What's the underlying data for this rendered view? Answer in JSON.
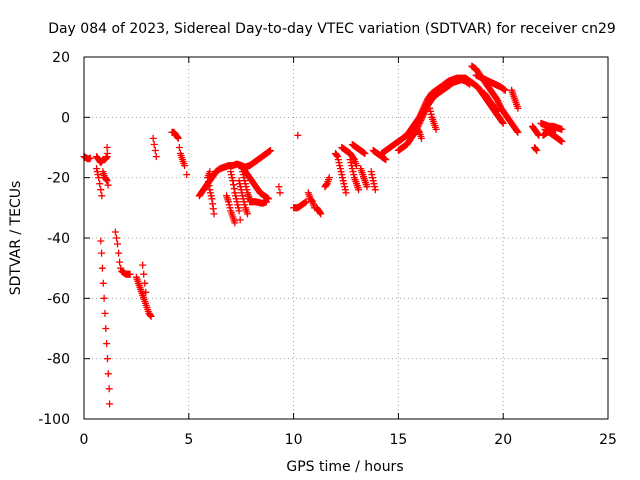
{
  "chart_data": {
    "type": "scatter",
    "title": "Day 084 of 2023, Sidereal Day-to-day VTEC variation (SDTVAR) for receiver cn29",
    "xlabel": "GPS time / hours",
    "ylabel": "SDTVAR / TECUs",
    "xlim": [
      0,
      25
    ],
    "ylim": [
      -100,
      20
    ],
    "xticks": [
      "0",
      "5",
      "10",
      "15",
      "20",
      "25"
    ],
    "yticks": [
      "20",
      "0",
      "-20",
      "-40",
      "-60",
      "-80",
      "-100"
    ],
    "grid": true,
    "marker": "+",
    "color": "#ff0000",
    "series": [
      {
        "name": "cn29",
        "segments": [
          [
            [
              0.0,
              -13
            ],
            [
              0.1,
              -13.4
            ],
            [
              0.2,
              -13.8
            ],
            [
              0.3,
              -13.5
            ]
          ],
          [
            [
              0.6,
              -13
            ],
            [
              0.7,
              -14
            ],
            [
              0.8,
              -15
            ],
            [
              0.9,
              -14
            ],
            [
              1.0,
              -14
            ],
            [
              1.1,
              -13
            ]
          ],
          [
            [
              0.6,
              -17
            ],
            [
              0.7,
              -20
            ],
            [
              0.75,
              -22
            ],
            [
              0.8,
              -24
            ],
            [
              0.85,
              -26
            ]
          ],
          [
            [
              0.9,
              -18
            ],
            [
              1.0,
              -20
            ],
            [
              1.1,
              -21
            ],
            [
              1.15,
              -22.5
            ]
          ],
          [
            [
              1.1,
              -10
            ],
            [
              1.12,
              -12
            ]
          ],
          [
            [
              0.8,
              -41
            ],
            [
              0.84,
              -45
            ],
            [
              0.88,
              -50
            ],
            [
              0.92,
              -55
            ],
            [
              0.96,
              -60
            ],
            [
              1.0,
              -65
            ],
            [
              1.04,
              -70
            ],
            [
              1.08,
              -75
            ],
            [
              1.12,
              -80
            ],
            [
              1.16,
              -85
            ],
            [
              1.2,
              -90
            ],
            [
              1.22,
              -95
            ]
          ],
          [
            [
              1.5,
              -38
            ],
            [
              1.55,
              -40
            ],
            [
              1.6,
              -42
            ],
            [
              1.65,
              -45
            ],
            [
              1.7,
              -48
            ],
            [
              1.75,
              -50
            ],
            [
              1.8,
              -51
            ],
            [
              1.9,
              -51.5
            ],
            [
              2.0,
              -52
            ],
            [
              2.1,
              -52
            ],
            [
              2.2,
              -52
            ]
          ],
          [
            [
              2.5,
              -53
            ],
            [
              2.6,
              -55
            ],
            [
              2.7,
              -57
            ],
            [
              2.8,
              -59
            ],
            [
              2.9,
              -61
            ],
            [
              3.0,
              -63
            ],
            [
              3.1,
              -65
            ],
            [
              3.2,
              -66
            ]
          ],
          [
            [
              2.8,
              -49
            ],
            [
              2.85,
              -52
            ],
            [
              2.9,
              -55
            ],
            [
              2.95,
              -58
            ]
          ],
          [
            [
              3.3,
              -7
            ],
            [
              3.35,
              -9
            ],
            [
              3.4,
              -11
            ],
            [
              3.45,
              -13
            ]
          ],
          [
            [
              4.2,
              -5
            ],
            [
              4.3,
              -5
            ],
            [
              4.4,
              -6
            ],
            [
              4.5,
              -7
            ],
            [
              4.55,
              -10
            ],
            [
              4.6,
              -12
            ],
            [
              4.7,
              -14
            ],
            [
              4.8,
              -16
            ]
          ],
          [
            [
              4.9,
              -19
            ]
          ],
          [
            [
              5.5,
              -26
            ],
            [
              5.7,
              -24
            ],
            [
              5.9,
              -22
            ],
            [
              6.1,
              -20
            ],
            [
              6.3,
              -18
            ],
            [
              6.5,
              -17
            ],
            [
              6.7,
              -16.5
            ],
            [
              6.9,
              -16
            ],
            [
              7.1,
              -16
            ],
            [
              7.3,
              -15.5
            ],
            [
              7.5,
              -16
            ],
            [
              7.7,
              -16.5
            ],
            [
              7.9,
              -16
            ],
            [
              8.1,
              -15
            ],
            [
              8.3,
              -14
            ],
            [
              8.5,
              -13
            ],
            [
              8.7,
              -12
            ],
            [
              8.9,
              -11
            ]
          ],
          [
            [
              6.2,
              -32
            ],
            [
              6.1,
              -27
            ],
            [
              6.0,
              -24
            ],
            [
              5.9,
              -20
            ],
            [
              6.0,
              -18
            ]
          ],
          [
            [
              7.0,
              -18
            ],
            [
              7.1,
              -21
            ],
            [
              7.2,
              -25
            ],
            [
              7.3,
              -28
            ],
            [
              7.4,
              -31
            ],
            [
              7.45,
              -34
            ]
          ],
          [
            [
              7.4,
              -21
            ],
            [
              7.5,
              -24
            ],
            [
              7.6,
              -27
            ],
            [
              7.7,
              -30
            ],
            [
              7.8,
              -32
            ]
          ],
          [
            [
              7.5,
              -16
            ],
            [
              7.6,
              -19
            ],
            [
              7.7,
              -22
            ],
            [
              7.8,
              -25
            ],
            [
              7.9,
              -27
            ],
            [
              8.0,
              -28
            ]
          ],
          [
            [
              7.6,
              -17
            ],
            [
              7.8,
              -19
            ],
            [
              8.0,
              -21
            ],
            [
              8.2,
              -23
            ],
            [
              8.4,
              -25
            ],
            [
              8.6,
              -26
            ],
            [
              8.8,
              -27
            ]
          ],
          [
            [
              6.8,
              -26
            ],
            [
              6.9,
              -28
            ],
            [
              7.0,
              -31
            ],
            [
              7.1,
              -33
            ],
            [
              7.2,
              -35
            ]
          ],
          [
            [
              7.9,
              -28
            ],
            [
              8.2,
              -28
            ],
            [
              8.5,
              -28.5
            ],
            [
              8.7,
              -28
            ]
          ],
          [
            [
              9.3,
              -23
            ],
            [
              9.35,
              -25
            ]
          ],
          [
            [
              10.2,
              -6
            ]
          ],
          [
            [
              10.0,
              -30
            ],
            [
              10.2,
              -30
            ],
            [
              10.4,
              -29
            ],
            [
              10.6,
              -28
            ]
          ],
          [
            [
              10.7,
              -25
            ],
            [
              10.8,
              -27
            ],
            [
              10.9,
              -28
            ],
            [
              11.0,
              -30
            ]
          ],
          [
            [
              11.1,
              -30
            ],
            [
              11.2,
              -31
            ],
            [
              11.3,
              -32
            ]
          ],
          [
            [
              11.5,
              -23
            ],
            [
              11.6,
              -22
            ],
            [
              11.7,
              -20
            ]
          ],
          [
            [
              12.0,
              -12
            ],
            [
              12.1,
              -13
            ],
            [
              12.2,
              -16
            ],
            [
              12.3,
              -19
            ],
            [
              12.4,
              -22
            ],
            [
              12.5,
              -25
            ]
          ],
          [
            [
              12.3,
              -10
            ],
            [
              12.5,
              -11
            ],
            [
              12.7,
              -12
            ],
            [
              12.9,
              -14
            ],
            [
              13.0,
              -16
            ]
          ],
          [
            [
              12.7,
              -14
            ],
            [
              12.8,
              -17
            ],
            [
              12.9,
              -20
            ],
            [
              13.0,
              -22
            ],
            [
              13.1,
              -24
            ]
          ],
          [
            [
              13.2,
              -17
            ],
            [
              13.3,
              -19
            ],
            [
              13.4,
              -21
            ],
            [
              13.5,
              -23
            ]
          ],
          [
            [
              12.8,
              -9
            ],
            [
              13.0,
              -10
            ],
            [
              13.2,
              -11
            ],
            [
              13.4,
              -12
            ]
          ],
          [
            [
              13.7,
              -18
            ],
            [
              13.8,
              -21
            ],
            [
              13.9,
              -24
            ]
          ],
          [
            [
              13.8,
              -11
            ],
            [
              14.0,
              -12
            ],
            [
              14.2,
              -13
            ],
            [
              14.4,
              -14
            ]
          ],
          [
            [
              14.2,
              -12
            ],
            [
              14.4,
              -11
            ],
            [
              14.6,
              -10
            ],
            [
              14.8,
              -9
            ],
            [
              15.0,
              -8
            ],
            [
              15.2,
              -7
            ],
            [
              15.4,
              -6
            ],
            [
              15.6,
              -4
            ],
            [
              15.8,
              -2
            ],
            [
              16.0,
              0
            ],
            [
              16.2,
              3
            ],
            [
              16.4,
              6
            ],
            [
              16.6,
              8
            ],
            [
              16.8,
              9
            ],
            [
              17.0,
              10
            ],
            [
              17.2,
              11
            ],
            [
              17.4,
              12
            ],
            [
              17.6,
              12.5
            ],
            [
              17.8,
              13
            ],
            [
              18.0,
              13
            ],
            [
              18.2,
              13
            ],
            [
              18.4,
              12
            ],
            [
              18.6,
              11
            ],
            [
              18.8,
              10
            ],
            [
              19.0,
              8
            ],
            [
              19.2,
              6
            ],
            [
              19.4,
              4
            ],
            [
              19.6,
              2
            ],
            [
              19.8,
              0
            ],
            [
              20.0,
              -2
            ]
          ],
          [
            [
              15.0,
              -11
            ],
            [
              15.2,
              -10
            ],
            [
              15.4,
              -9
            ],
            [
              15.6,
              -7
            ],
            [
              15.8,
              -5
            ],
            [
              16.0,
              -2
            ],
            [
              16.2,
              1
            ],
            [
              16.4,
              4
            ],
            [
              16.6,
              6
            ],
            [
              16.8,
              7.5
            ],
            [
              17.0,
              8.5
            ],
            [
              17.2,
              9.5
            ],
            [
              17.4,
              10.5
            ],
            [
              17.6,
              11.5
            ],
            [
              17.8,
              12
            ],
            [
              18.0,
              12.5
            ],
            [
              18.2,
              12
            ],
            [
              18.4,
              11
            ]
          ],
          [
            [
              15.8,
              -3
            ],
            [
              16.0,
              -5
            ],
            [
              16.1,
              -7
            ]
          ],
          [
            [
              16.5,
              3
            ],
            [
              16.6,
              0
            ],
            [
              16.7,
              -2
            ],
            [
              16.8,
              -4
            ]
          ],
          [
            [
              18.5,
              17
            ],
            [
              18.7,
              16
            ],
            [
              18.9,
              14
            ],
            [
              19.1,
              12
            ],
            [
              19.3,
              10
            ],
            [
              19.5,
              8
            ],
            [
              19.7,
              6
            ],
            [
              19.9,
              3
            ],
            [
              20.1,
              1
            ],
            [
              20.3,
              -1
            ],
            [
              20.5,
              -3
            ],
            [
              20.7,
              -5
            ]
          ],
          [
            [
              18.7,
              14
            ],
            [
              19.0,
              13
            ],
            [
              19.3,
              12
            ],
            [
              19.6,
              11
            ],
            [
              19.9,
              10
            ],
            [
              20.1,
              9
            ]
          ],
          [
            [
              19.1,
              8
            ],
            [
              19.3,
              6
            ],
            [
              19.5,
              4
            ],
            [
              19.7,
              2
            ]
          ],
          [
            [
              20.4,
              9
            ],
            [
              20.5,
              7
            ],
            [
              20.6,
              5
            ],
            [
              20.7,
              3
            ]
          ],
          [
            [
              21.5,
              -10
            ],
            [
              21.6,
              -11
            ]
          ],
          [
            [
              21.4,
              -3
            ],
            [
              21.5,
              -4
            ],
            [
              21.6,
              -5
            ],
            [
              21.7,
              -6
            ]
          ],
          [
            [
              22.0,
              -4
            ],
            [
              22.2,
              -5
            ],
            [
              22.4,
              -6
            ],
            [
              22.6,
              -7
            ],
            [
              22.8,
              -8
            ]
          ],
          [
            [
              21.8,
              -2
            ],
            [
              22.0,
              -2.5
            ],
            [
              22.2,
              -3
            ],
            [
              22.4,
              -3
            ],
            [
              22.6,
              -3.5
            ],
            [
              22.8,
              -4
            ]
          ],
          [
            [
              21.9,
              -6
            ],
            [
              22.1,
              -5
            ],
            [
              22.3,
              -4.5
            ],
            [
              22.5,
              -4
            ]
          ]
        ]
      }
    ]
  }
}
